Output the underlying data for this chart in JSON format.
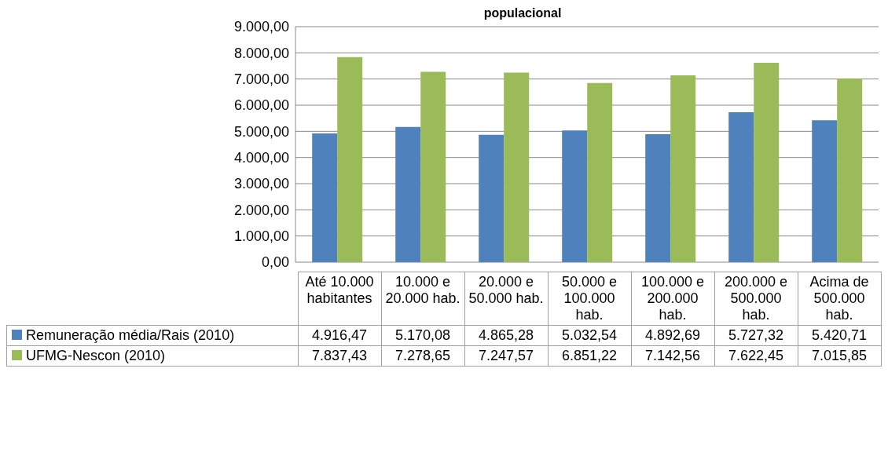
{
  "chart_data": {
    "type": "bar",
    "title": "populacional",
    "categories": [
      "Até 10.000 habitantes",
      "10.000 e 20.000 hab.",
      "20.000 e 50.000 hab.",
      "50.000 e 100.000 hab.",
      "100.000 e 200.000 hab.",
      "200.000 e 500.000 hab.",
      "Acima de 500.000 hab."
    ],
    "series": [
      {
        "name": "Remuneração média/Rais (2010)",
        "color": "#4f81bd",
        "values": [
          4916.47,
          5170.08,
          4865.28,
          5032.54,
          4892.69,
          5727.32,
          5420.71
        ],
        "value_labels": [
          "4.916,47",
          "5.170,08",
          "4.865,28",
          "5.032,54",
          "4.892,69",
          "5.727,32",
          "5.420,71"
        ]
      },
      {
        "name": "UFMG-Nescon (2010)",
        "color": "#9bbb59",
        "values": [
          7837.43,
          7278.65,
          7247.57,
          6851.22,
          7142.56,
          7622.45,
          7015.85
        ],
        "value_labels": [
          "7.837,43",
          "7.278,65",
          "7.247,57",
          "6.851,22",
          "7.142,56",
          "7.622,45",
          "7.015,85"
        ]
      }
    ],
    "ylim": [
      0,
      9000
    ],
    "yticks": [
      {
        "value": 0,
        "label": "0,00"
      },
      {
        "value": 1000,
        "label": "1.000,00"
      },
      {
        "value": 2000,
        "label": "2.000,00"
      },
      {
        "value": 3000,
        "label": "3.000,00"
      },
      {
        "value": 4000,
        "label": "4.000,00"
      },
      {
        "value": 5000,
        "label": "5.000,00"
      },
      {
        "value": 6000,
        "label": "6.000,00"
      },
      {
        "value": 7000,
        "label": "7.000,00"
      },
      {
        "value": 8000,
        "label": "8.000,00"
      },
      {
        "value": 9000,
        "label": "9.000,00"
      }
    ],
    "grid": "y",
    "legend": "bottom"
  }
}
